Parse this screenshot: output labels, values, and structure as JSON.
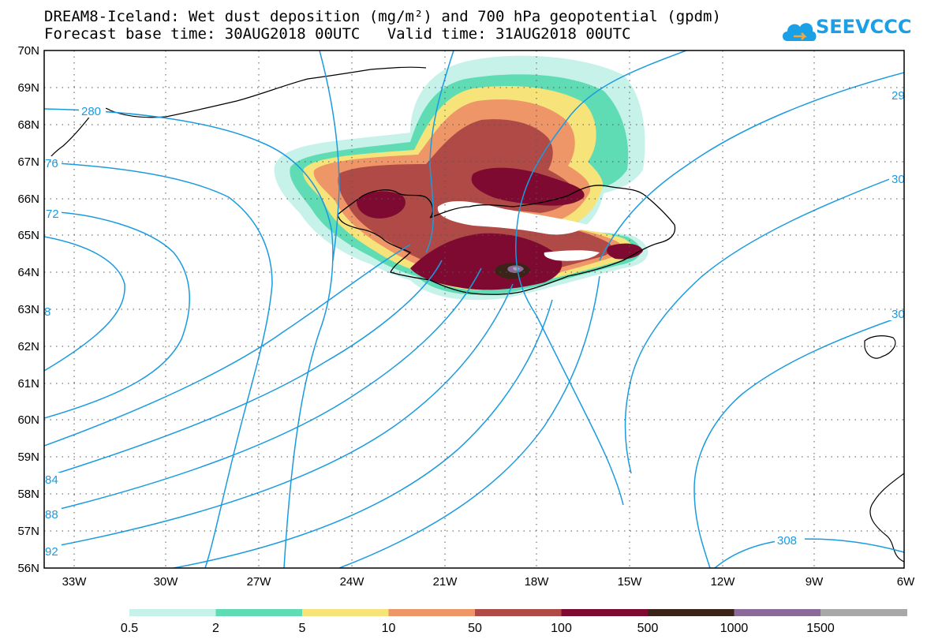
{
  "title": {
    "line1": "DREAM8-Iceland: Wet dust deposition (mg/m²) and 700 hPa geopotential (gpdm)",
    "line2_base": "Forecast base time: 30AUG2018 00UTC",
    "line2_valid": "Valid time: 31AUG2018 00UTC"
  },
  "logo": {
    "text": "SEEVCCC",
    "icon": "cloud-icon",
    "color": "#1aa0e6"
  },
  "axes": {
    "lon_labels": [
      "33W",
      "30W",
      "27W",
      "24W",
      "21W",
      "18W",
      "15W",
      "12W",
      "9W",
      "6W"
    ],
    "lat_labels": [
      "70N",
      "69N",
      "68N",
      "67N",
      "66N",
      "65N",
      "64N",
      "63N",
      "62N",
      "61N",
      "60N",
      "59N",
      "58N",
      "57N",
      "56N"
    ]
  },
  "contour_labels": [
    "280",
    "76",
    "72",
    "8",
    "84",
    "88",
    "92",
    "29",
    "30",
    "30",
    "308"
  ],
  "colorbar": {
    "labels": [
      "0.5",
      "2",
      "5",
      "10",
      "50",
      "100",
      "500",
      "1000",
      "1500"
    ],
    "colors": [
      "#c6f2ea",
      "#5fdcb4",
      "#f6e37a",
      "#ee9668",
      "#b04a46",
      "#7e0a32",
      "#3a2418",
      "#8a6a98",
      "#a8a8a8"
    ]
  }
}
